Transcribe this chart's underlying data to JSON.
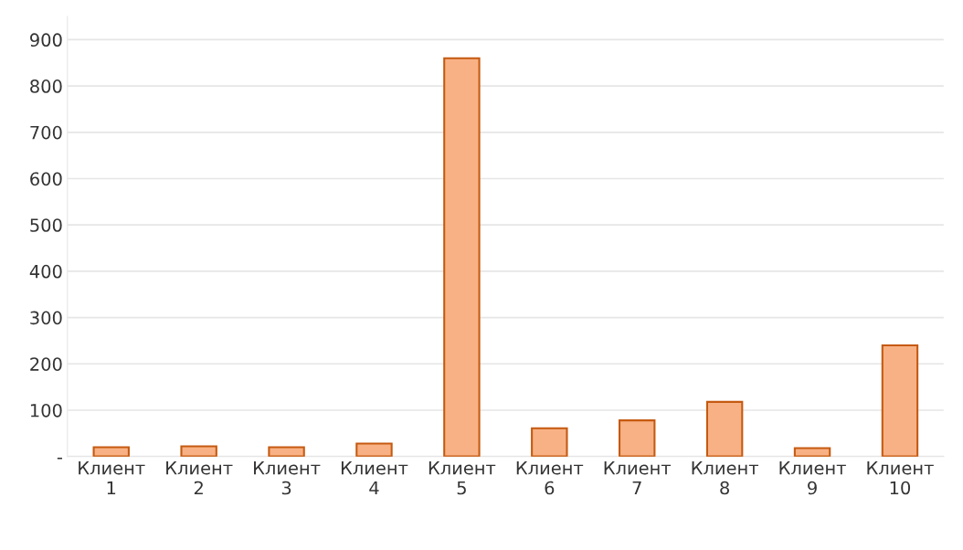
{
  "chart_data": {
    "type": "bar",
    "categories": [
      "Клиент 1",
      "Клиент 2",
      "Клиент 3",
      "Клиент 4",
      "Клиент 5",
      "Клиент 6",
      "Клиент 7",
      "Клиент 8",
      "Клиент 9",
      "Клиент 10"
    ],
    "values": [
      20,
      22,
      20,
      28,
      860,
      61,
      78,
      118,
      18,
      240
    ],
    "color": "#f8b184",
    "ylim": [
      0,
      950
    ],
    "yticks": [
      {
        "value": 0,
        "label": "-"
      },
      100,
      200,
      300,
      400,
      500,
      600,
      700,
      800,
      900
    ],
    "grid": "y",
    "legend": false
  }
}
